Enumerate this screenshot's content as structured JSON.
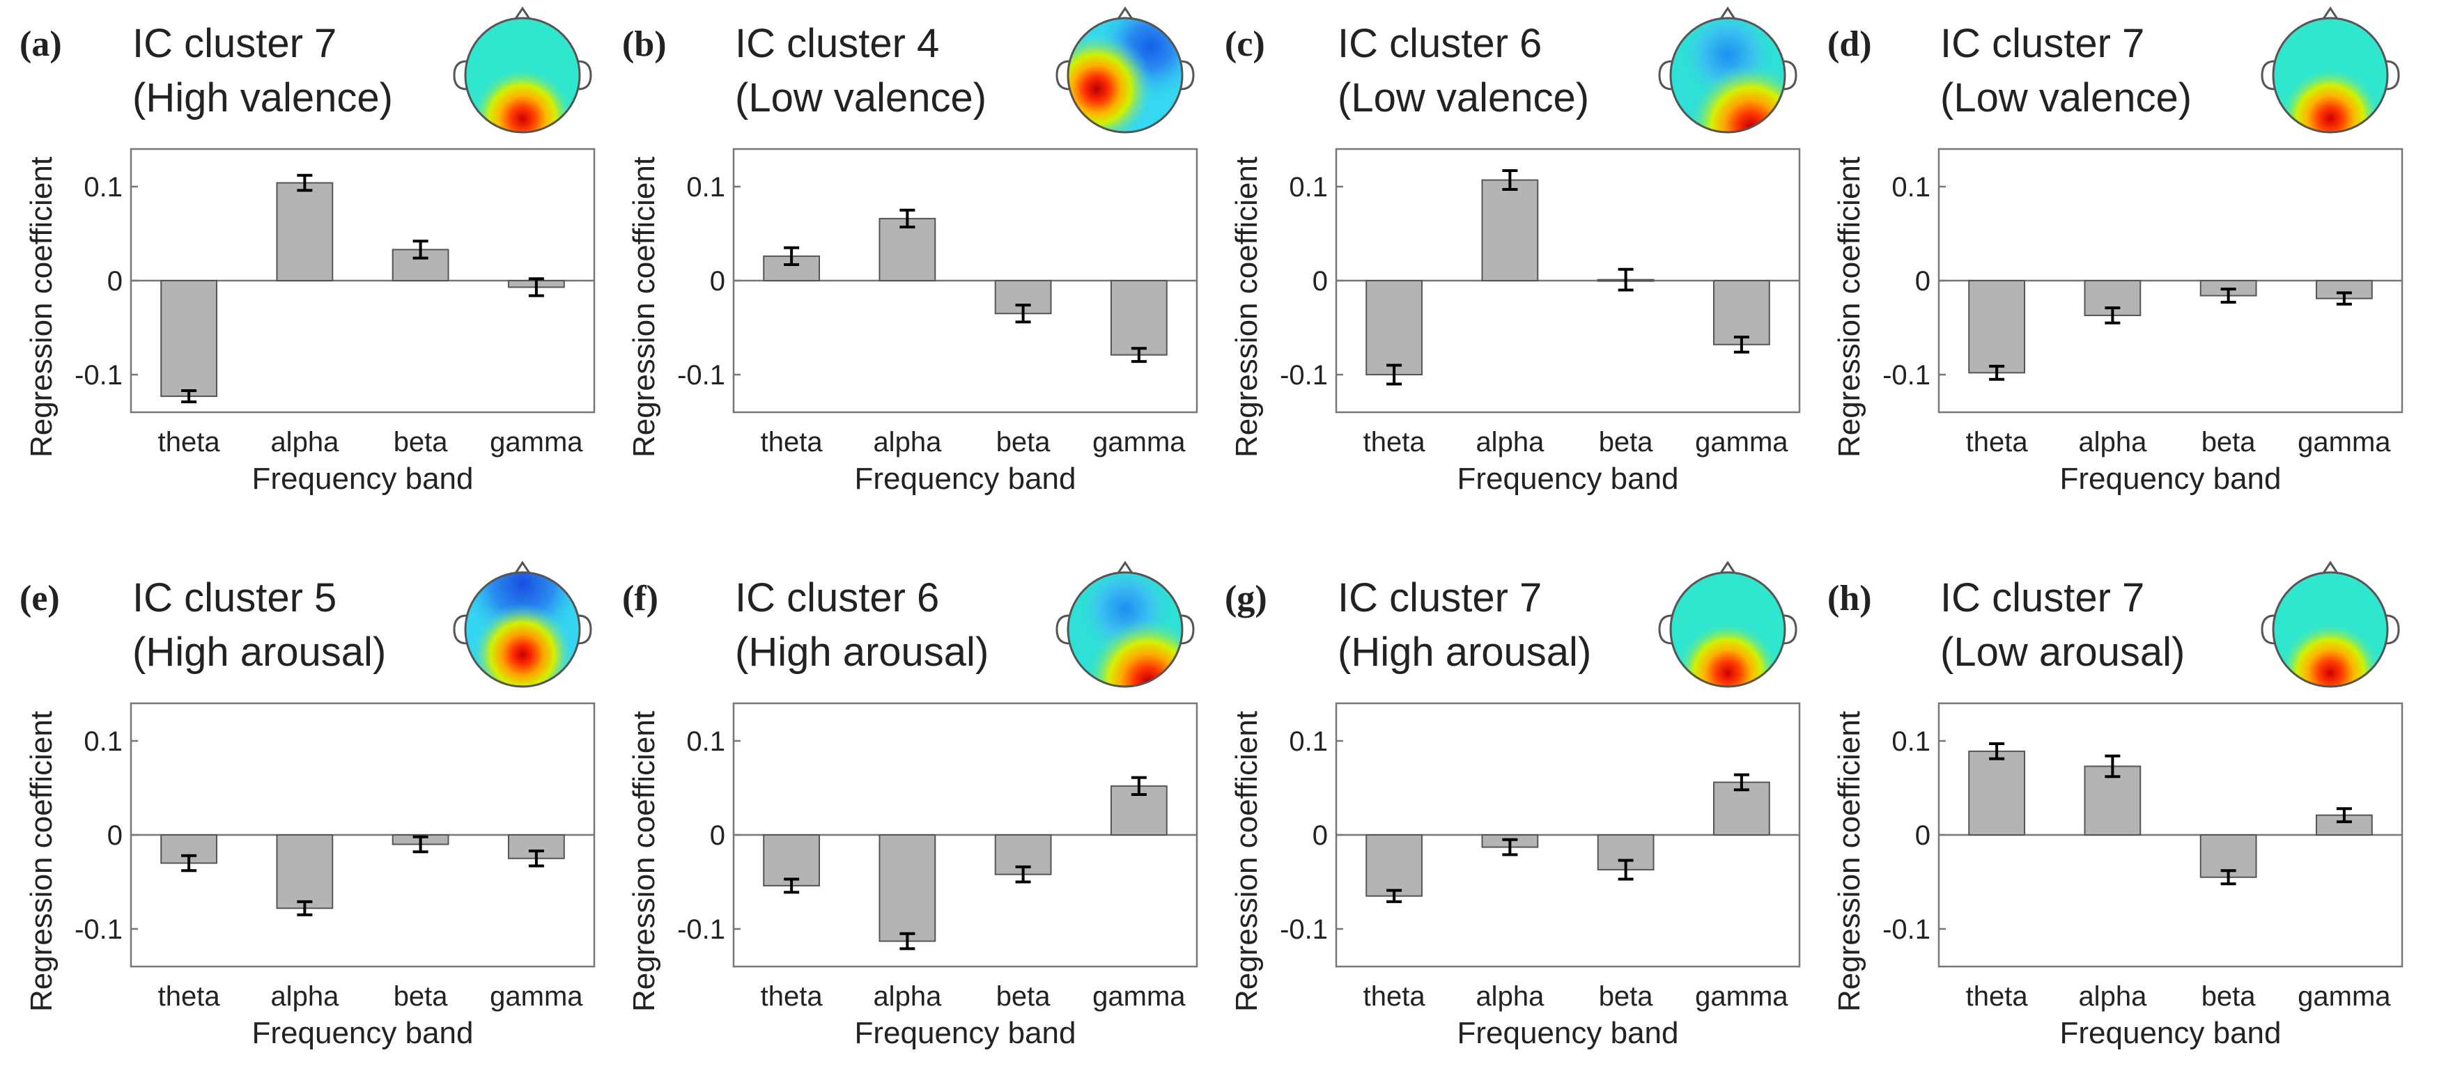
{
  "figure": {
    "band_colors": {
      "bar": "#b4b4b4",
      "bar_stroke": "#555555",
      "error": "#000000"
    }
  },
  "chart_data": [
    {
      "letter": "(a)",
      "title_line1": "IC cluster 7",
      "title_line2": "(High valence)",
      "type": "bar",
      "categories": [
        "theta",
        "alpha",
        "beta",
        "gamma"
      ],
      "values": [
        -0.123,
        0.104,
        0.033,
        -0.007
      ],
      "errors": [
        0.006,
        0.008,
        0.009,
        0.009
      ],
      "xlabel": "Frequency band",
      "ylabel": "Regression coefficient",
      "ylim": [
        -0.14,
        0.14
      ],
      "yticks": [
        0.1,
        0,
        -0.1
      ],
      "ytick_labels": [
        "0.1",
        "0",
        "-0.1"
      ],
      "topomap": "posterior-central"
    },
    {
      "letter": "(b)",
      "title_line1": "IC cluster 4",
      "title_line2": "(Low valence)",
      "type": "bar",
      "categories": [
        "theta",
        "alpha",
        "beta",
        "gamma"
      ],
      "values": [
        0.026,
        0.066,
        -0.035,
        -0.079
      ],
      "errors": [
        0.009,
        0.009,
        0.009,
        0.007
      ],
      "xlabel": "Frequency band",
      "ylabel": "Regression coefficient",
      "ylim": [
        -0.14,
        0.14
      ],
      "yticks": [
        0.1,
        0,
        -0.1
      ],
      "ytick_labels": [
        "0.1",
        "0",
        "-0.1"
      ],
      "topomap": "left-temporal"
    },
    {
      "letter": "(c)",
      "title_line1": "IC cluster 6",
      "title_line2": "(Low valence)",
      "type": "bar",
      "categories": [
        "theta",
        "alpha",
        "beta",
        "gamma"
      ],
      "values": [
        -0.1,
        0.107,
        0.001,
        -0.068
      ],
      "errors": [
        0.01,
        0.01,
        0.011,
        0.008
      ],
      "xlabel": "Frequency band",
      "ylabel": "Regression coefficient",
      "ylim": [
        -0.14,
        0.14
      ],
      "yticks": [
        0.1,
        0,
        -0.1
      ],
      "ytick_labels": [
        "0.1",
        "0",
        "-0.1"
      ],
      "topomap": "posterior-right"
    },
    {
      "letter": "(d)",
      "title_line1": "IC cluster 7",
      "title_line2": "(Low valence)",
      "type": "bar",
      "categories": [
        "theta",
        "alpha",
        "beta",
        "gamma"
      ],
      "values": [
        -0.098,
        -0.037,
        -0.016,
        -0.019
      ],
      "errors": [
        0.007,
        0.008,
        0.007,
        0.006
      ],
      "xlabel": "Frequency band",
      "ylabel": "Regression coefficient",
      "ylim": [
        -0.14,
        0.14
      ],
      "yticks": [
        0.1,
        0,
        -0.1
      ],
      "ytick_labels": [
        "0.1",
        "0",
        "-0.1"
      ],
      "topomap": "posterior-central"
    },
    {
      "letter": "(e)",
      "title_line1": "IC cluster 5",
      "title_line2": "(High arousal)",
      "type": "bar",
      "categories": [
        "theta",
        "alpha",
        "beta",
        "gamma"
      ],
      "values": [
        -0.03,
        -0.078,
        -0.01,
        -0.025
      ],
      "errors": [
        0.008,
        0.007,
        0.008,
        0.008
      ],
      "xlabel": "Frequency band",
      "ylabel": "Regression coefficient",
      "ylim": [
        -0.14,
        0.14
      ],
      "yticks": [
        0.1,
        0,
        -0.1
      ],
      "ytick_labels": [
        "0.1",
        "0",
        "-0.1"
      ],
      "topomap": "central-parietal"
    },
    {
      "letter": "(f)",
      "title_line1": "IC cluster 6",
      "title_line2": "(High arousal)",
      "type": "bar",
      "categories": [
        "theta",
        "alpha",
        "beta",
        "gamma"
      ],
      "values": [
        -0.054,
        -0.113,
        -0.042,
        0.052
      ],
      "errors": [
        0.007,
        0.008,
        0.008,
        0.009
      ],
      "xlabel": "Frequency band",
      "ylabel": "Regression coefficient",
      "ylim": [
        -0.14,
        0.14
      ],
      "yticks": [
        0.1,
        0,
        -0.1
      ],
      "ytick_labels": [
        "0.1",
        "0",
        "-0.1"
      ],
      "topomap": "posterior-right"
    },
    {
      "letter": "(g)",
      "title_line1": "IC cluster 7",
      "title_line2": "(High arousal)",
      "type": "bar",
      "categories": [
        "theta",
        "alpha",
        "beta",
        "gamma"
      ],
      "values": [
        -0.065,
        -0.013,
        -0.037,
        0.056
      ],
      "errors": [
        0.006,
        0.008,
        0.01,
        0.008
      ],
      "xlabel": "Frequency band",
      "ylabel": "Regression coefficient",
      "ylim": [
        -0.14,
        0.14
      ],
      "yticks": [
        0.1,
        0,
        -0.1
      ],
      "ytick_labels": [
        "0.1",
        "0",
        "-0.1"
      ],
      "topomap": "posterior-central"
    },
    {
      "letter": "(h)",
      "title_line1": "IC cluster 7",
      "title_line2": "(Low arousal)",
      "type": "bar",
      "categories": [
        "theta",
        "alpha",
        "beta",
        "gamma"
      ],
      "values": [
        0.089,
        0.073,
        -0.045,
        0.021
      ],
      "errors": [
        0.008,
        0.011,
        0.007,
        0.007
      ],
      "xlabel": "Frequency band",
      "ylabel": "Regression coefficient",
      "ylim": [
        -0.14,
        0.14
      ],
      "yticks": [
        0.1,
        0,
        -0.1
      ],
      "ytick_labels": [
        "0.1",
        "0",
        "-0.1"
      ],
      "topomap": "posterior-central"
    }
  ]
}
